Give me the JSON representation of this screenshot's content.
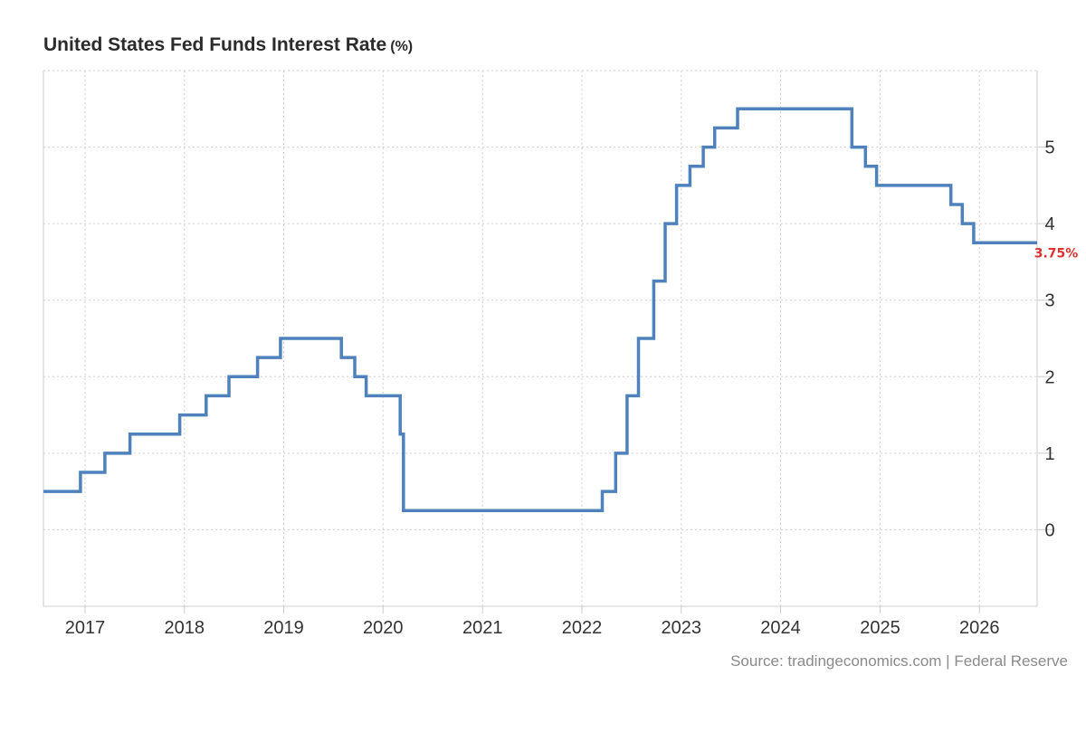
{
  "header": {
    "title": "United States Fed Funds Interest Rate",
    "unit": "(%)"
  },
  "footer": {
    "source": "Source: tradingeconomics.com | Federal Reserve"
  },
  "colors": {
    "line": "#4f81bd",
    "last_value": "#e03131",
    "grid": "#cfcfcf"
  },
  "chart_data": {
    "type": "line",
    "step": true,
    "title": "United States Fed Funds Interest Rate (%)",
    "xlabel": "",
    "ylabel": "",
    "xlim": [
      "2016-08-01",
      "2026-08-01"
    ],
    "ylim": [
      -1,
      6
    ],
    "yticks": [
      0,
      1,
      2,
      3,
      4,
      5
    ],
    "ytick_labels": [
      "0",
      "1",
      "2",
      "3",
      "4",
      "5"
    ],
    "xticks": [
      "2017-01-01",
      "2018-01-01",
      "2019-01-01",
      "2020-01-01",
      "2021-01-01",
      "2022-01-01",
      "2023-01-01",
      "2024-01-01",
      "2025-01-01",
      "2026-01-01"
    ],
    "xtick_labels": [
      "2017",
      "2018",
      "2019",
      "2020",
      "2021",
      "2022",
      "2023",
      "2024",
      "2025",
      "2026"
    ],
    "grid": true,
    "y_axis_position": "right",
    "last_value_label": "3.75%",
    "series": [
      {
        "values": [
          {
            "date": "2016-08-01",
            "rate": 0.5
          },
          {
            "date": "2016-12-15",
            "rate": 0.75
          },
          {
            "date": "2017-03-15",
            "rate": 1.0
          },
          {
            "date": "2017-06-15",
            "rate": 1.25
          },
          {
            "date": "2017-12-15",
            "rate": 1.5
          },
          {
            "date": "2018-03-22",
            "rate": 1.75
          },
          {
            "date": "2018-06-14",
            "rate": 2.0
          },
          {
            "date": "2018-09-27",
            "rate": 2.25
          },
          {
            "date": "2018-12-20",
            "rate": 2.5
          },
          {
            "date": "2019-08-01",
            "rate": 2.25
          },
          {
            "date": "2019-09-19",
            "rate": 2.0
          },
          {
            "date": "2019-10-31",
            "rate": 1.75
          },
          {
            "date": "2020-03-04",
            "rate": 1.25
          },
          {
            "date": "2020-03-16",
            "rate": 0.25
          },
          {
            "date": "2022-03-17",
            "rate": 0.5
          },
          {
            "date": "2022-05-05",
            "rate": 1.0
          },
          {
            "date": "2022-06-16",
            "rate": 1.75
          },
          {
            "date": "2022-07-28",
            "rate": 2.5
          },
          {
            "date": "2022-09-22",
            "rate": 3.25
          },
          {
            "date": "2022-11-03",
            "rate": 4.0
          },
          {
            "date": "2022-12-15",
            "rate": 4.5
          },
          {
            "date": "2023-02-02",
            "rate": 4.75
          },
          {
            "date": "2023-03-23",
            "rate": 5.0
          },
          {
            "date": "2023-05-04",
            "rate": 5.25
          },
          {
            "date": "2023-07-27",
            "rate": 5.5
          },
          {
            "date": "2024-09-19",
            "rate": 5.0
          },
          {
            "date": "2024-11-08",
            "rate": 4.75
          },
          {
            "date": "2024-12-19",
            "rate": 4.5
          },
          {
            "date": "2025-09-18",
            "rate": 4.25
          },
          {
            "date": "2025-10-30",
            "rate": 4.0
          },
          {
            "date": "2025-12-11",
            "rate": 3.75
          },
          {
            "date": "2026-08-01",
            "rate": 3.75
          }
        ]
      }
    ]
  }
}
